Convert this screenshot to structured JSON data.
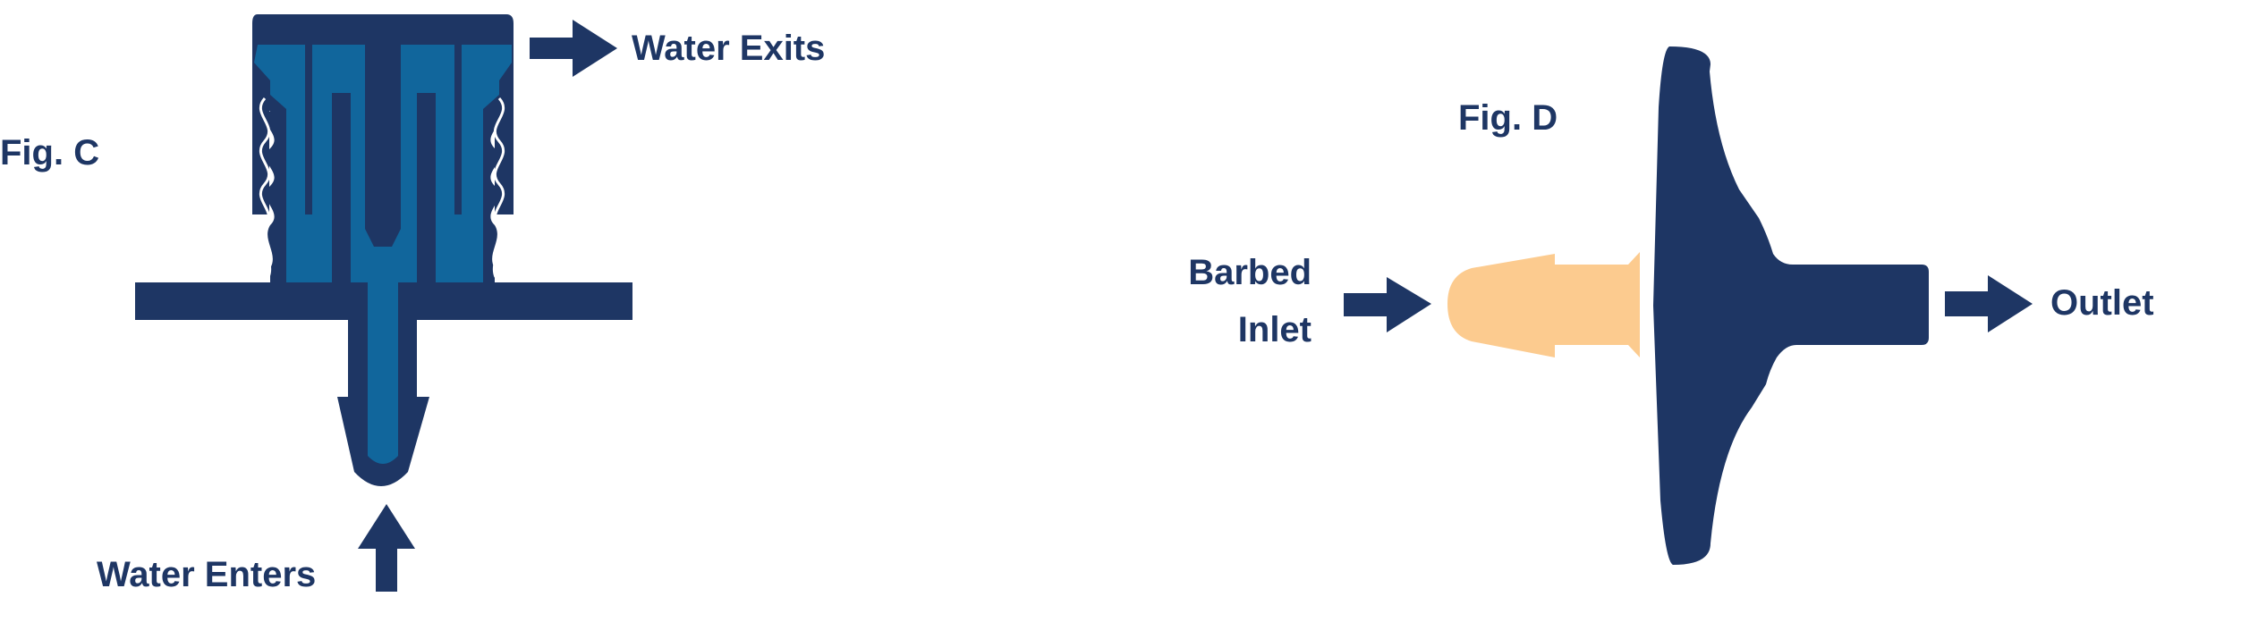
{
  "colors": {
    "navy": "#1e3664",
    "blue": "#11669c",
    "peach": "#fccb8f",
    "white": "#ffffff"
  },
  "figure_c": {
    "label": "Fig. C",
    "exit_label": "Water Exits",
    "enter_label": "Water Enters",
    "icons": [
      "arrow-right-icon",
      "arrow-up-icon"
    ]
  },
  "figure_d": {
    "label": "Fig. D",
    "inlet_label_line1": "Barbed",
    "inlet_label_line2": "Inlet",
    "outlet_label": "Outlet",
    "icons": [
      "arrow-right-icon",
      "arrow-right-icon"
    ]
  }
}
